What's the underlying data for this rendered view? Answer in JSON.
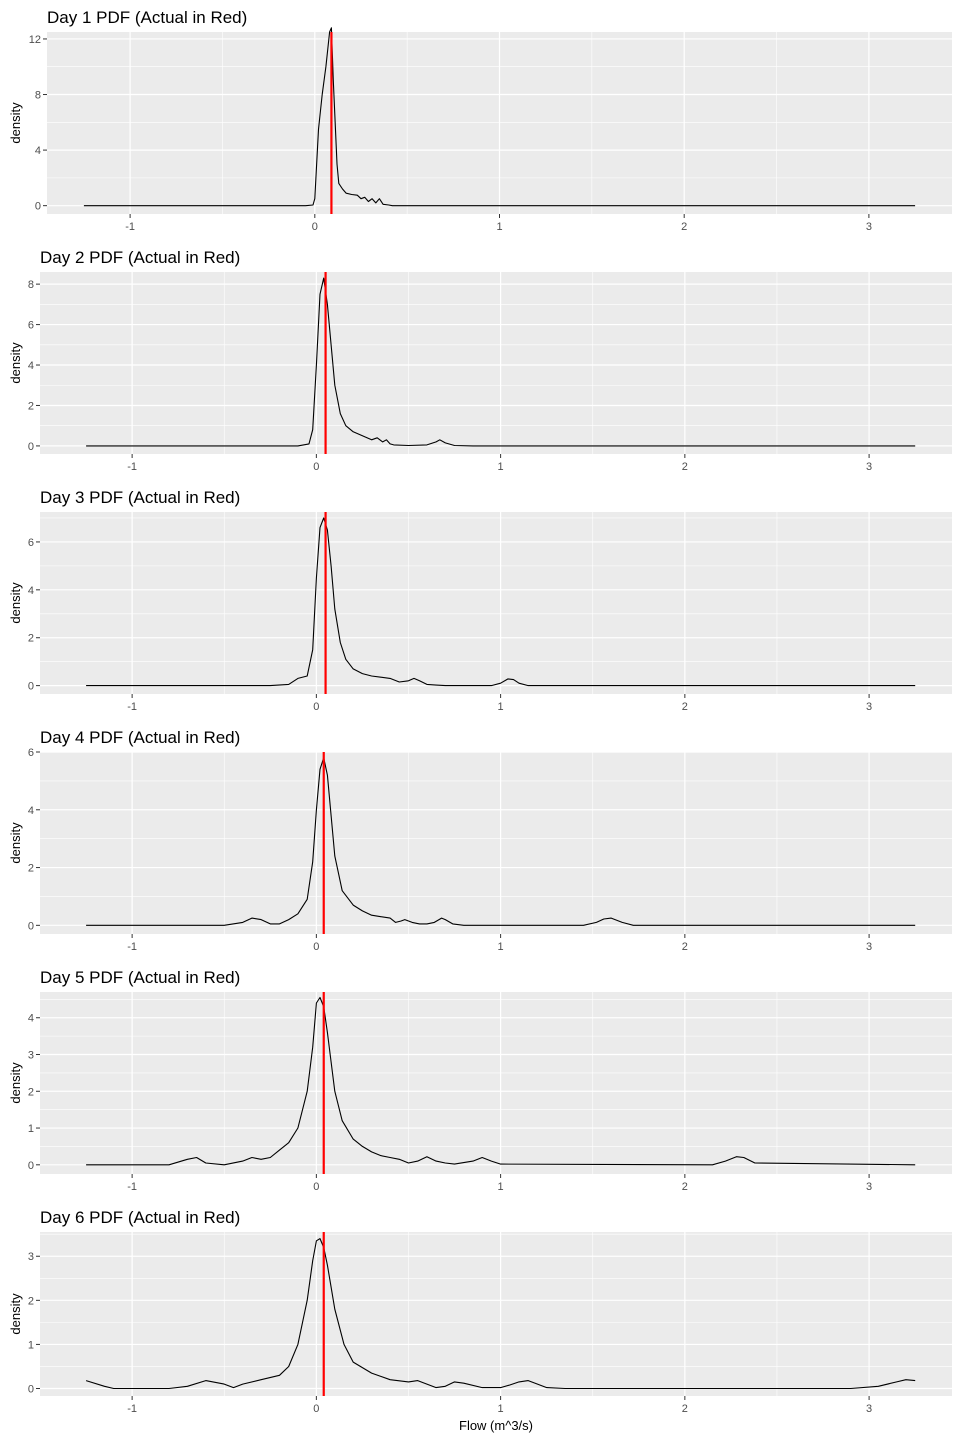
{
  "figure": {
    "x_axis_label": "Flow (m^3/s)",
    "colors": {
      "panel_background": "#ebebeb",
      "grid_major": "#ffffff",
      "density_line": "#000000",
      "actual_line": "#ff0000",
      "tick_text": "#4d4d4d"
    }
  },
  "chart_data": [
    {
      "type": "line",
      "title": "Day 1 PDF (Actual in Red)",
      "xlabel": "",
      "ylabel": "density",
      "xlim": [
        -1.45,
        3.45
      ],
      "ylim": [
        -0.6,
        12.5
      ],
      "xticks": [
        -1,
        0,
        1,
        2,
        3
      ],
      "yticks": [
        0,
        4,
        8,
        12
      ],
      "actual": 0.09,
      "series": [
        {
          "x": [
            -1.25,
            -0.05,
            -0.01,
            0.0,
            0.02,
            0.04,
            0.06,
            0.08,
            0.09,
            0.1,
            0.12,
            0.13,
            0.15,
            0.17,
            0.2,
            0.23,
            0.25,
            0.27,
            0.29,
            0.31,
            0.33,
            0.35,
            0.37,
            0.4,
            0.42,
            3.25
          ],
          "y": [
            0,
            0,
            0.05,
            0.5,
            5.5,
            8,
            10,
            12.5,
            12.8,
            9,
            3,
            1.6,
            1.2,
            0.9,
            0.8,
            0.75,
            0.5,
            0.6,
            0.3,
            0.5,
            0.2,
            0.5,
            0.1,
            0.05,
            0,
            0
          ]
        }
      ]
    },
    {
      "type": "line",
      "title": "Day 2 PDF (Actual in Red)",
      "xlabel": "",
      "ylabel": "density",
      "xlim": [
        -1.5,
        3.45
      ],
      "ylim": [
        -0.4,
        8.6
      ],
      "xticks": [
        -1,
        0,
        1,
        2,
        3
      ],
      "yticks": [
        0,
        2,
        4,
        6,
        8
      ],
      "actual": 0.05,
      "series": [
        {
          "x": [
            -1.25,
            -0.1,
            -0.04,
            -0.02,
            0.0,
            0.02,
            0.04,
            0.06,
            0.08,
            0.1,
            0.13,
            0.16,
            0.2,
            0.25,
            0.3,
            0.33,
            0.36,
            0.38,
            0.4,
            0.42,
            0.5,
            0.6,
            0.65,
            0.67,
            0.7,
            0.75,
            0.85,
            3.25
          ],
          "y": [
            0,
            0,
            0.1,
            0.8,
            4,
            7.5,
            8.3,
            7,
            5,
            3,
            1.6,
            1.0,
            0.7,
            0.5,
            0.3,
            0.4,
            0.2,
            0.3,
            0.1,
            0.05,
            0.02,
            0.05,
            0.2,
            0.3,
            0.15,
            0.02,
            0,
            0
          ]
        }
      ]
    },
    {
      "type": "line",
      "title": "Day 3 PDF (Actual in Red)",
      "xlabel": "",
      "ylabel": "density",
      "xlim": [
        -1.5,
        3.45
      ],
      "ylim": [
        -0.35,
        7.25
      ],
      "xticks": [
        -1,
        0,
        1,
        2,
        3
      ],
      "yticks": [
        0,
        2,
        4,
        6
      ],
      "actual": 0.05,
      "series": [
        {
          "x": [
            -1.25,
            -0.25,
            -0.15,
            -0.1,
            -0.05,
            -0.02,
            0.0,
            0.02,
            0.04,
            0.06,
            0.08,
            0.1,
            0.13,
            0.16,
            0.2,
            0.25,
            0.3,
            0.35,
            0.4,
            0.45,
            0.5,
            0.53,
            0.56,
            0.6,
            0.65,
            0.7,
            0.95,
            1.0,
            1.04,
            1.07,
            1.1,
            1.15,
            3.25
          ],
          "y": [
            0,
            0,
            0.05,
            0.3,
            0.4,
            1.5,
            4.5,
            6.6,
            7.0,
            6.5,
            5.0,
            3.2,
            1.8,
            1.1,
            0.7,
            0.5,
            0.4,
            0.35,
            0.3,
            0.15,
            0.2,
            0.3,
            0.2,
            0.05,
            0.02,
            0,
            0,
            0.1,
            0.28,
            0.25,
            0.1,
            0,
            0
          ]
        }
      ]
    },
    {
      "type": "line",
      "title": "Day 4 PDF (Actual in Red)",
      "xlabel": "",
      "ylabel": "density",
      "xlim": [
        -1.5,
        3.45
      ],
      "ylim": [
        -0.3,
        6.0
      ],
      "xticks": [
        -1,
        0,
        1,
        2,
        3
      ],
      "yticks": [
        0,
        2,
        4,
        6
      ],
      "actual": 0.04,
      "series": [
        {
          "x": [
            -1.25,
            -0.5,
            -0.4,
            -0.35,
            -0.3,
            -0.25,
            -0.2,
            -0.15,
            -0.1,
            -0.05,
            -0.02,
            0.0,
            0.02,
            0.04,
            0.06,
            0.08,
            0.1,
            0.14,
            0.2,
            0.25,
            0.3,
            0.35,
            0.4,
            0.43,
            0.46,
            0.48,
            0.52,
            0.56,
            0.6,
            0.64,
            0.68,
            0.7,
            0.74,
            0.8,
            1.45,
            1.52,
            1.56,
            1.6,
            1.66,
            1.72,
            3.25
          ],
          "y": [
            0,
            0,
            0.1,
            0.25,
            0.2,
            0.05,
            0.05,
            0.2,
            0.4,
            0.9,
            2.2,
            4.0,
            5.4,
            5.8,
            5.2,
            3.8,
            2.4,
            1.2,
            0.7,
            0.5,
            0.35,
            0.3,
            0.25,
            0.1,
            0.15,
            0.2,
            0.1,
            0.05,
            0.05,
            0.1,
            0.25,
            0.2,
            0.05,
            0,
            0,
            0.1,
            0.22,
            0.25,
            0.1,
            0,
            0
          ]
        }
      ]
    },
    {
      "type": "line",
      "title": "Day 5 PDF (Actual in Red)",
      "xlabel": "",
      "ylabel": "density",
      "xlim": [
        -1.5,
        3.45
      ],
      "ylim": [
        -0.25,
        4.7
      ],
      "xticks": [
        -1,
        0,
        1,
        2,
        3
      ],
      "yticks": [
        0,
        1,
        2,
        3,
        4
      ],
      "actual": 0.04,
      "series": [
        {
          "x": [
            -1.25,
            -0.8,
            -0.7,
            -0.65,
            -0.6,
            -0.5,
            -0.4,
            -0.35,
            -0.3,
            -0.25,
            -0.2,
            -0.15,
            -0.1,
            -0.05,
            -0.02,
            0.0,
            0.02,
            0.04,
            0.06,
            0.08,
            0.1,
            0.14,
            0.2,
            0.25,
            0.3,
            0.35,
            0.4,
            0.45,
            0.5,
            0.55,
            0.6,
            0.65,
            0.7,
            0.75,
            0.85,
            0.9,
            0.95,
            1.0,
            2.15,
            2.22,
            2.28,
            2.32,
            2.38,
            3.25
          ],
          "y": [
            0,
            0,
            0.15,
            0.2,
            0.05,
            0,
            0.1,
            0.2,
            0.15,
            0.2,
            0.4,
            0.6,
            1.0,
            2.0,
            3.2,
            4.4,
            4.55,
            4.3,
            3.6,
            2.8,
            2.0,
            1.2,
            0.7,
            0.5,
            0.35,
            0.25,
            0.2,
            0.15,
            0.05,
            0.1,
            0.22,
            0.1,
            0.05,
            0.02,
            0.1,
            0.2,
            0.1,
            0.02,
            0,
            0.1,
            0.22,
            0.2,
            0.05,
            0
          ]
        }
      ]
    },
    {
      "type": "line",
      "title": "Day 6 PDF (Actual in Red)",
      "xlabel": "Flow (m^3/s)",
      "ylabel": "density",
      "xlim": [
        -1.5,
        3.45
      ],
      "ylim": [
        -0.17,
        3.55
      ],
      "xticks": [
        -1,
        0,
        1,
        2,
        3
      ],
      "yticks": [
        0,
        1,
        2,
        3
      ],
      "actual": 0.04,
      "series": [
        {
          "x": [
            -1.25,
            -1.15,
            -1.1,
            -0.8,
            -0.7,
            -0.6,
            -0.5,
            -0.45,
            -0.4,
            -0.3,
            -0.2,
            -0.15,
            -0.1,
            -0.05,
            -0.02,
            0.0,
            0.02,
            0.04,
            0.06,
            0.08,
            0.1,
            0.15,
            0.2,
            0.3,
            0.4,
            0.5,
            0.55,
            0.6,
            0.65,
            0.7,
            0.75,
            0.8,
            0.9,
            1.0,
            1.05,
            1.1,
            1.15,
            1.2,
            1.25,
            1.35,
            2.9,
            3.05,
            3.15,
            3.2,
            3.25
          ],
          "y": [
            0.18,
            0.05,
            0,
            0,
            0.05,
            0.18,
            0.1,
            0.02,
            0.1,
            0.2,
            0.3,
            0.5,
            1.0,
            2.0,
            2.9,
            3.35,
            3.4,
            3.2,
            2.8,
            2.3,
            1.8,
            1.0,
            0.6,
            0.35,
            0.2,
            0.15,
            0.18,
            0.1,
            0.02,
            0.05,
            0.15,
            0.12,
            0.02,
            0.02,
            0.08,
            0.15,
            0.18,
            0.1,
            0.02,
            0,
            0,
            0.05,
            0.15,
            0.2,
            0.18
          ]
        }
      ]
    }
  ]
}
